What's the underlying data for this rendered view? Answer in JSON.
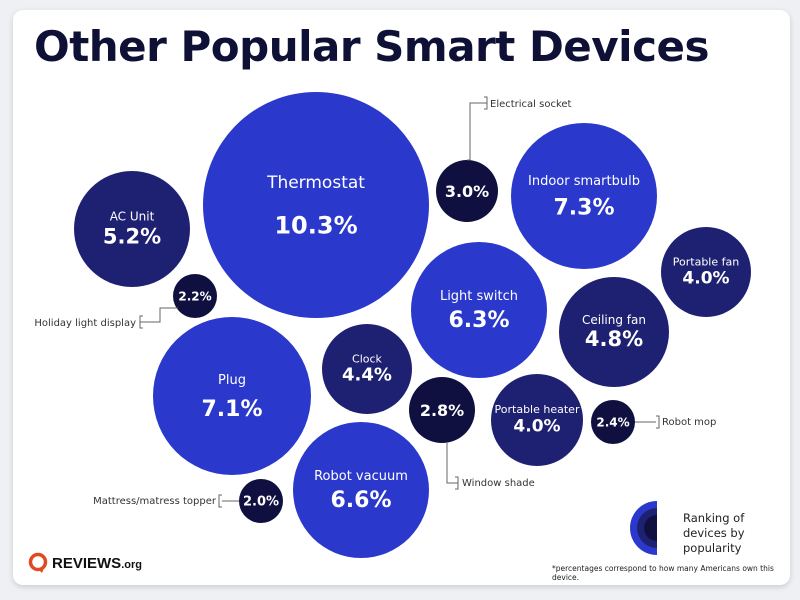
{
  "title": "Other Popular Smart Devices",
  "colors": {
    "bright": "#2a38cc",
    "medium": "#1e2172",
    "dark": "#0f1040",
    "logo": "#e04a22"
  },
  "chart_data": {
    "type": "bubble",
    "title": "Other Popular Smart Devices",
    "unit": "% of Americans who own device",
    "items": [
      {
        "name": "Thermostat",
        "value": 10.3,
        "label": "10.3%",
        "tier": "bright",
        "inside": true
      },
      {
        "name": "Indoor smartbulb",
        "value": 7.3,
        "label": "7.3%",
        "tier": "bright",
        "inside": true
      },
      {
        "name": "Plug",
        "value": 7.1,
        "label": "7.1%",
        "tier": "bright",
        "inside": true
      },
      {
        "name": "Robot vacuum",
        "value": 6.6,
        "label": "6.6%",
        "tier": "bright",
        "inside": true
      },
      {
        "name": "Light switch",
        "value": 6.3,
        "label": "6.3%",
        "tier": "bright",
        "inside": true
      },
      {
        "name": "AC Unit",
        "value": 5.2,
        "label": "5.2%",
        "tier": "medium",
        "inside": true
      },
      {
        "name": "Ceiling fan",
        "value": 4.8,
        "label": "4.8%",
        "tier": "medium",
        "inside": true
      },
      {
        "name": "Clock",
        "value": 4.4,
        "label": "4.4%",
        "tier": "medium",
        "inside": true
      },
      {
        "name": "Portable fan",
        "value": 4.0,
        "label": "4.0%",
        "tier": "medium",
        "inside": true
      },
      {
        "name": "Portable heater",
        "value": 4.0,
        "label": "4.0%",
        "tier": "medium",
        "inside": true
      },
      {
        "name": "Electrical socket",
        "value": 3.0,
        "label": "3.0%",
        "tier": "dark",
        "inside": false
      },
      {
        "name": "Window shade",
        "value": 2.8,
        "label": "2.8%",
        "tier": "dark",
        "inside": false
      },
      {
        "name": "Robot mop",
        "value": 2.4,
        "label": "2.4%",
        "tier": "dark",
        "inside": false
      },
      {
        "name": "Holiday light display",
        "value": 2.2,
        "label": "2.2%",
        "tier": "dark",
        "inside": false
      },
      {
        "name": "Mattress/matress topper",
        "value": 2.0,
        "label": "2.0%",
        "tier": "dark",
        "inside": false
      }
    ],
    "legend": "Ranking of devices by popularity"
  },
  "logo": {
    "main": "REVIEWS",
    "suffix": ".org"
  },
  "legend_text": "Ranking of devices by popularity",
  "footnote": "*percentages correspond to how many Americans own this device."
}
